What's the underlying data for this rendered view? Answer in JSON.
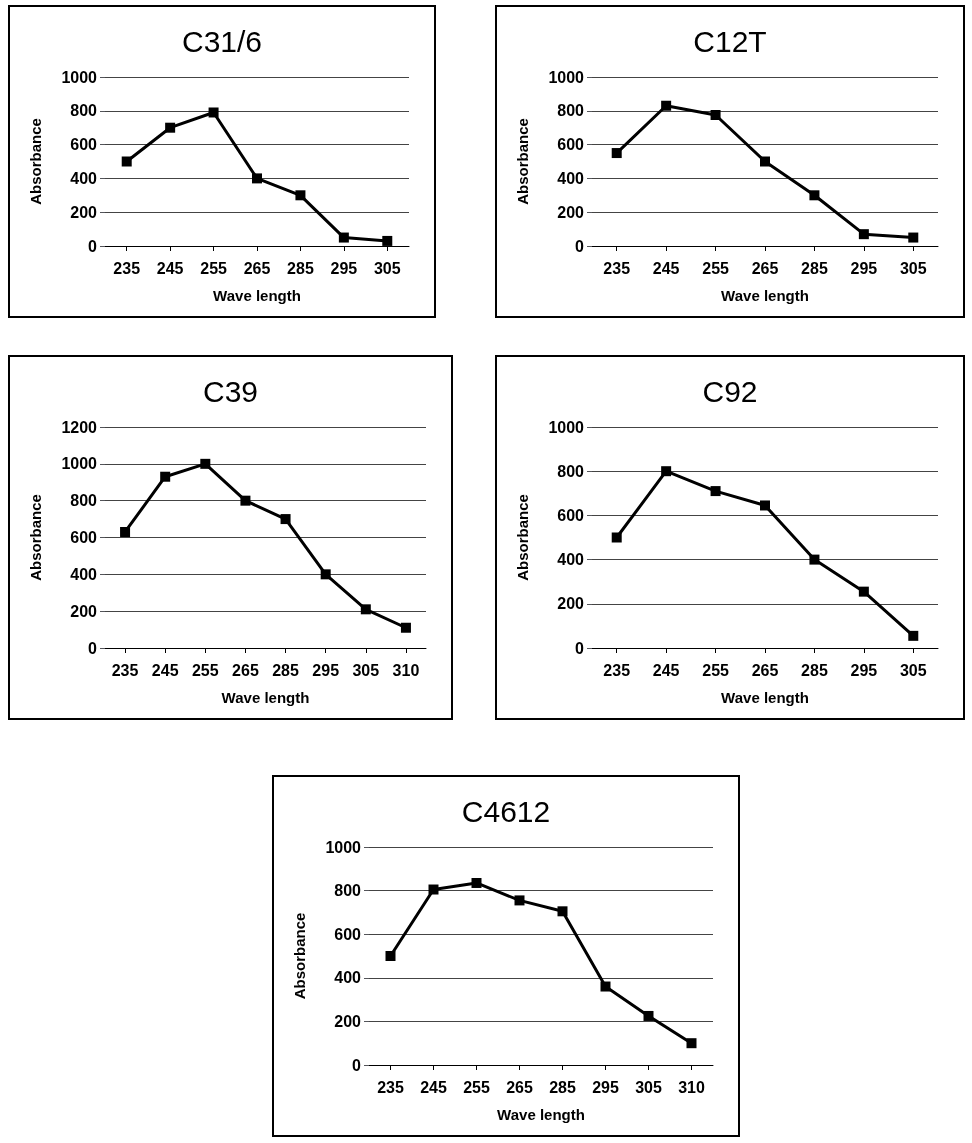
{
  "chart_data": [
    {
      "type": "line",
      "title": "C31/6",
      "xlabel": "Wave length",
      "ylabel": "Absorbance",
      "categories": [
        "235",
        "245",
        "255",
        "265",
        "285",
        "295",
        "305"
      ],
      "series": [
        {
          "color": "#000000",
          "values": [
            500,
            700,
            790,
            400,
            300,
            50,
            30
          ]
        }
      ],
      "ylim": [
        0,
        1000
      ],
      "yticks": [
        0,
        200,
        400,
        600,
        800,
        1000
      ],
      "grid": "y",
      "marker": "square",
      "line_style": "solid"
    },
    {
      "type": "line",
      "title": "C12T",
      "xlabel": "Wave length",
      "ylabel": "Absorbance",
      "categories": [
        "235",
        "245",
        "255",
        "265",
        "285",
        "295",
        "305"
      ],
      "series": [
        {
          "color": "#000000",
          "values": [
            550,
            830,
            775,
            500,
            300,
            70,
            50
          ]
        }
      ],
      "ylim": [
        0,
        1000
      ],
      "yticks": [
        0,
        200,
        400,
        600,
        800,
        1000
      ],
      "grid": "y",
      "marker": "square",
      "line_style": "solid"
    },
    {
      "type": "line",
      "title": "C39",
      "xlabel": "Wave length",
      "ylabel": "Absorbance",
      "categories": [
        "235",
        "245",
        "255",
        "265",
        "285",
        "295",
        "305",
        "310"
      ],
      "series": [
        {
          "color": "#000000",
          "values": [
            630,
            930,
            1000,
            800,
            700,
            400,
            210,
            110
          ]
        }
      ],
      "ylim": [
        0,
        1200
      ],
      "yticks": [
        0,
        200,
        400,
        600,
        800,
        1000,
        1200
      ],
      "grid": "y",
      "marker": "square",
      "line_style": "solid"
    },
    {
      "type": "line",
      "title": "C92",
      "xlabel": "Wave length",
      "ylabel": "Absorbance",
      "categories": [
        "235",
        "245",
        "255",
        "265",
        "285",
        "295",
        "305"
      ],
      "series": [
        {
          "color": "#000000",
          "values": [
            500,
            800,
            710,
            645,
            400,
            255,
            55
          ]
        }
      ],
      "ylim": [
        0,
        1000
      ],
      "yticks": [
        0,
        200,
        400,
        600,
        800,
        1000
      ],
      "grid": "y",
      "marker": "square",
      "line_style": "solid"
    },
    {
      "type": "line",
      "title": "C4612",
      "xlabel": "Wave length",
      "ylabel": "Absorbance",
      "categories": [
        "235",
        "245",
        "255",
        "265",
        "285",
        "295",
        "305",
        "310"
      ],
      "series": [
        {
          "color": "#000000",
          "values": [
            500,
            805,
            835,
            755,
            705,
            360,
            225,
            100
          ]
        }
      ],
      "ylim": [
        0,
        1000
      ],
      "yticks": [
        0,
        200,
        400,
        600,
        800,
        1000
      ],
      "grid": "y",
      "marker": "square",
      "line_style": "solid"
    }
  ]
}
